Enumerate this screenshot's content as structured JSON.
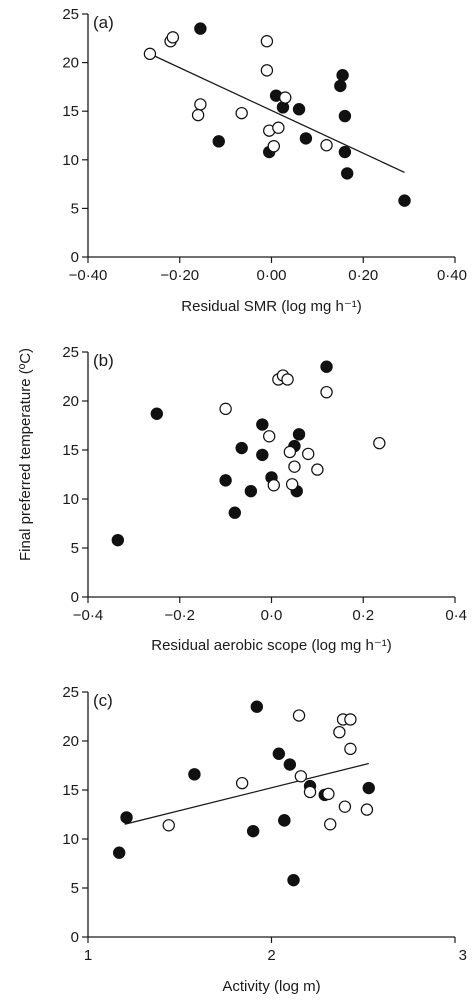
{
  "chart_data": [
    {
      "type": "scatter",
      "panel_label": "(a)",
      "xlabel": "Residual SMR (log mg h⁻¹)",
      "ylabel": "",
      "xlim": [
        -0.4,
        0.4
      ],
      "ylim": [
        0,
        25
      ],
      "xticks": [
        -0.4,
        -0.2,
        0.0,
        0.2,
        0.4
      ],
      "xtick_labels": [
        "−0·40",
        "−0·20",
        "0·00",
        "0·20",
        "0·40"
      ],
      "yticks": [
        0,
        5,
        10,
        15,
        20,
        25
      ],
      "ytick_labels": [
        "0",
        "5",
        "10",
        "15",
        "20",
        "25"
      ],
      "series": [
        {
          "marker": "filled",
          "x": [
            -0.155,
            -0.115,
            -0.005,
            0.01,
            0.025,
            0.06,
            0.075,
            0.15,
            0.155,
            0.16,
            0.16,
            0.165,
            0.29
          ],
          "y": [
            23.5,
            11.9,
            10.8,
            16.6,
            15.4,
            15.2,
            12.2,
            17.6,
            18.7,
            14.5,
            10.8,
            8.6,
            5.8
          ]
        },
        {
          "marker": "open",
          "x": [
            -0.265,
            -0.22,
            -0.215,
            -0.155,
            -0.16,
            -0.065,
            -0.01,
            -0.01,
            -0.005,
            0.005,
            0.015,
            0.03,
            0.12
          ],
          "y": [
            20.9,
            22.2,
            22.6,
            15.7,
            14.6,
            14.8,
            19.2,
            22.2,
            13.0,
            11.4,
            13.3,
            16.4,
            11.5
          ]
        }
      ],
      "trendline": {
        "x": [
          -0.265,
          0.29
        ],
        "y": [
          20.9,
          8.7
        ]
      }
    },
    {
      "type": "scatter",
      "panel_label": "(b)",
      "xlabel": "Residual aerobic scope (log mg h⁻¹)",
      "ylabel": "Final preferred temperature (ºC)",
      "xlim": [
        -0.4,
        0.4
      ],
      "ylim": [
        0,
        25
      ],
      "xticks": [
        -0.4,
        -0.2,
        0.0,
        0.2,
        0.4
      ],
      "xtick_labels": [
        "−0·4",
        "−0·2",
        "0·0",
        "0·2",
        "0·4"
      ],
      "yticks": [
        0,
        5,
        10,
        15,
        20,
        25
      ],
      "ytick_labels": [
        "0",
        "5",
        "10",
        "15",
        "20",
        "25"
      ],
      "series": [
        {
          "marker": "filled",
          "x": [
            -0.335,
            -0.25,
            -0.1,
            -0.08,
            -0.065,
            -0.045,
            -0.02,
            -0.02,
            0.0,
            0.05,
            0.055,
            0.06,
            0.12
          ],
          "y": [
            5.8,
            18.7,
            11.9,
            8.6,
            15.2,
            10.8,
            17.6,
            14.5,
            12.2,
            15.4,
            10.8,
            16.6,
            23.5
          ]
        },
        {
          "marker": "open",
          "x": [
            -0.1,
            -0.005,
            0.005,
            0.015,
            0.025,
            0.035,
            0.04,
            0.045,
            0.05,
            0.08,
            0.1,
            0.12,
            0.235
          ],
          "y": [
            19.2,
            16.4,
            11.4,
            22.2,
            22.6,
            22.2,
            14.8,
            11.5,
            13.3,
            14.6,
            13.0,
            20.9,
            15.7
          ]
        }
      ],
      "trendline": null
    },
    {
      "type": "scatter",
      "panel_label": "(c)",
      "xlabel": "Activity (log m)",
      "ylabel": "",
      "xlim": [
        1,
        3
      ],
      "ylim": [
        0,
        25
      ],
      "xticks": [
        1,
        2,
        3
      ],
      "xtick_labels": [
        "1",
        "2",
        "3"
      ],
      "yticks": [
        0,
        5,
        10,
        15,
        20,
        25
      ],
      "ytick_labels": [
        "0",
        "5",
        "10",
        "15",
        "20",
        "25"
      ],
      "series": [
        {
          "marker": "filled",
          "x": [
            1.17,
            1.21,
            1.58,
            1.9,
            1.92,
            2.04,
            2.07,
            2.1,
            2.12,
            2.21,
            2.29,
            2.53,
            2.07
          ],
          "y": [
            8.6,
            12.2,
            16.6,
            10.8,
            23.5,
            18.7,
            11.9,
            17.6,
            5.8,
            15.4,
            14.5,
            15.2,
            11.9
          ]
        },
        {
          "marker": "open",
          "x": [
            1.44,
            1.84,
            2.15,
            2.16,
            2.21,
            2.31,
            2.32,
            2.37,
            2.39,
            2.4,
            2.43,
            2.43,
            2.52
          ],
          "y": [
            11.4,
            15.7,
            22.6,
            16.4,
            14.8,
            14.6,
            11.5,
            20.9,
            22.2,
            13.3,
            19.2,
            22.2,
            13.0
          ]
        }
      ],
      "trendline": {
        "x": [
          1.2,
          2.53
        ],
        "y": [
          11.5,
          17.7
        ]
      }
    }
  ]
}
